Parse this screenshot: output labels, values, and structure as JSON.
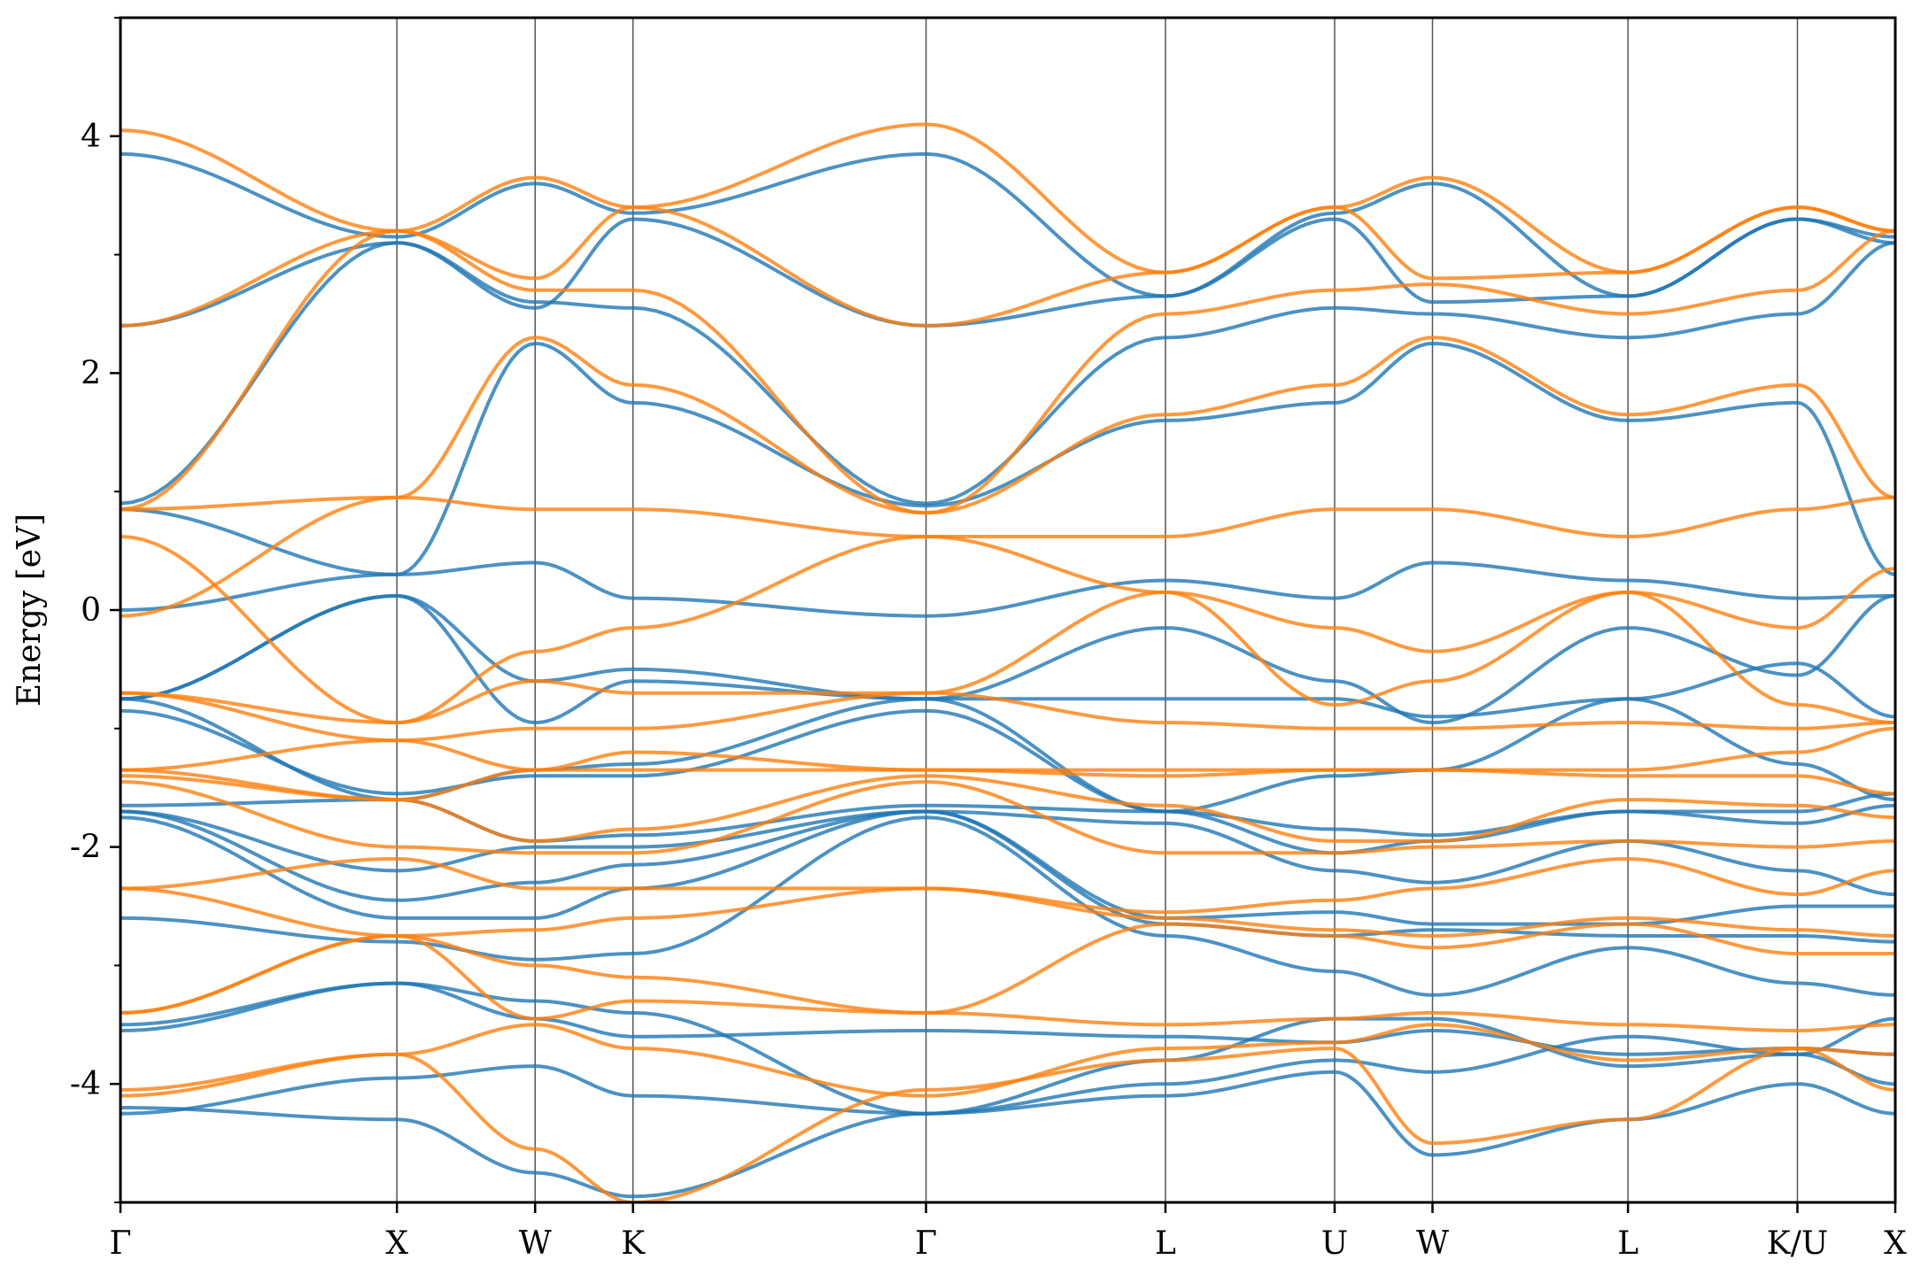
{
  "chart_data": {
    "type": "line",
    "title": "",
    "xlabel": "",
    "ylabel": "Energy [eV]",
    "ylim": [
      -5,
      5
    ],
    "y_ticks": [
      -4,
      -2,
      0,
      2,
      4
    ],
    "y_tick_labels": [
      "-4",
      "-2",
      "0",
      "2",
      "4"
    ],
    "k_path": [
      {
        "label": "Γ",
        "k": 0.0
      },
      {
        "label": "X",
        "k": 1.0
      },
      {
        "label": "W",
        "k": 1.5
      },
      {
        "label": "K",
        "k": 1.854
      },
      {
        "label": "Γ",
        "k": 2.914
      },
      {
        "label": "L",
        "k": 3.78
      },
      {
        "label": "U",
        "k": 4.392
      },
      {
        "label": "W",
        "k": 4.746
      },
      {
        "label": "L",
        "k": 5.453
      },
      {
        "label": "K/U",
        "k": 6.066
      },
      {
        "label": "X",
        "k": 6.42
      }
    ],
    "grid": false,
    "series_colors": [
      "#1f77b4",
      "#ff7f0e"
    ],
    "series": [
      {
        "color": "#1f77b4",
        "bands": [
          [
            -4.25,
            -3.95,
            -3.85,
            -4.1,
            -4.25,
            -4.0,
            -3.8,
            -3.9,
            -3.6,
            -3.75,
            -4.0
          ],
          [
            -4.2,
            -4.3,
            -4.75,
            -4.95,
            -4.25,
            -4.1,
            -3.9,
            -4.6,
            -4.3,
            -4.0,
            -4.25
          ],
          [
            -3.55,
            -3.15,
            -3.45,
            -3.6,
            -3.55,
            -3.6,
            -3.65,
            -3.55,
            -3.75,
            -3.7,
            -3.75
          ],
          [
            -3.5,
            -3.15,
            -3.3,
            -3.4,
            -4.25,
            -3.8,
            -3.45,
            -3.45,
            -3.85,
            -3.75,
            -3.45
          ],
          [
            -2.6,
            -2.8,
            -2.95,
            -2.9,
            -1.75,
            -2.75,
            -3.05,
            -3.25,
            -2.85,
            -3.15,
            -3.25
          ],
          [
            -1.75,
            -2.6,
            -2.6,
            -2.35,
            -1.7,
            -2.65,
            -2.75,
            -2.7,
            -2.75,
            -2.75,
            -2.8
          ],
          [
            -1.7,
            -2.45,
            -2.3,
            -2.15,
            -1.7,
            -2.6,
            -2.55,
            -2.65,
            -2.65,
            -2.5,
            -2.5
          ],
          [
            -1.7,
            -2.2,
            -2.0,
            -2.0,
            -1.7,
            -1.8,
            -2.2,
            -2.3,
            -1.95,
            -2.2,
            -2.4
          ],
          [
            -1.65,
            -1.6,
            -1.95,
            -1.9,
            -1.65,
            -1.7,
            -2.05,
            -1.95,
            -1.7,
            -1.8,
            -1.65
          ],
          [
            -0.85,
            -1.55,
            -1.4,
            -1.4,
            -0.85,
            -1.7,
            -1.85,
            -1.9,
            -1.7,
            -1.7,
            -1.55
          ],
          [
            -0.75,
            -1.6,
            -1.35,
            -1.3,
            -0.75,
            -1.7,
            -1.4,
            -1.35,
            -0.75,
            -1.3,
            -1.6
          ],
          [
            -0.75,
            0.12,
            -0.6,
            -0.5,
            -0.75,
            -0.75,
            -0.75,
            -0.9,
            -0.75,
            -0.45,
            -0.9
          ],
          [
            -0.75,
            0.12,
            -0.95,
            -0.6,
            -0.75,
            -0.15,
            -0.6,
            -0.95,
            -0.15,
            -0.55,
            0.12
          ],
          [
            0.0,
            0.3,
            0.4,
            0.1,
            -0.05,
            0.25,
            0.1,
            0.4,
            0.25,
            0.1,
            0.12
          ],
          [
            0.85,
            0.3,
            2.25,
            1.75,
            0.88,
            1.6,
            1.75,
            2.25,
            1.6,
            1.75,
            0.3
          ],
          [
            0.9,
            3.1,
            2.6,
            2.55,
            0.9,
            2.3,
            2.55,
            2.5,
            2.3,
            2.5,
            3.1
          ],
          [
            2.4,
            3.1,
            2.55,
            3.3,
            2.4,
            2.65,
            3.3,
            2.6,
            2.65,
            3.3,
            3.1
          ],
          [
            3.85,
            3.15,
            3.6,
            3.35,
            3.85,
            2.65,
            3.35,
            3.6,
            2.65,
            3.3,
            3.15
          ]
        ]
      },
      {
        "color": "#ff7f0e",
        "bands": [
          [
            -4.1,
            -3.75,
            -4.55,
            -5.0,
            -4.05,
            -3.8,
            -3.7,
            -4.5,
            -4.3,
            -3.7,
            -4.05
          ],
          [
            -4.05,
            -3.75,
            -3.5,
            -3.7,
            -4.1,
            -3.7,
            -3.65,
            -3.5,
            -3.8,
            -3.7,
            -3.75
          ],
          [
            -3.4,
            -2.75,
            -3.45,
            -3.3,
            -3.4,
            -3.5,
            -3.45,
            -3.4,
            -3.5,
            -3.55,
            -3.5
          ],
          [
            -3.4,
            -2.75,
            -3.0,
            -3.1,
            -3.4,
            -2.65,
            -2.75,
            -2.85,
            -2.65,
            -2.9,
            -2.9
          ],
          [
            -2.35,
            -2.75,
            -2.7,
            -2.6,
            -2.35,
            -2.6,
            -2.7,
            -2.75,
            -2.6,
            -2.7,
            -2.75
          ],
          [
            -2.35,
            -2.1,
            -2.35,
            -2.35,
            -2.35,
            -2.55,
            -2.45,
            -2.35,
            -2.1,
            -2.4,
            -2.2
          ],
          [
            -1.45,
            -2.0,
            -2.05,
            -2.05,
            -1.45,
            -2.05,
            -2.05,
            -2.0,
            -1.95,
            -2.0,
            -1.95
          ],
          [
            -1.4,
            -1.6,
            -1.95,
            -1.85,
            -1.4,
            -1.65,
            -1.95,
            -1.95,
            -1.6,
            -1.65,
            -1.75
          ],
          [
            -1.35,
            -1.6,
            -1.35,
            -1.35,
            -1.35,
            -1.4,
            -1.35,
            -1.35,
            -1.4,
            -1.4,
            -1.55
          ],
          [
            -1.35,
            -1.1,
            -1.35,
            -1.2,
            -1.35,
            -1.35,
            -1.35,
            -1.35,
            -1.35,
            -1.2,
            -1.0
          ],
          [
            -0.7,
            -1.1,
            -1.0,
            -1.0,
            -0.7,
            -0.95,
            -1.0,
            -1.0,
            -0.95,
            -1.0,
            -0.95
          ],
          [
            -0.7,
            -0.95,
            -0.6,
            -0.7,
            -0.7,
            0.15,
            -0.8,
            -0.6,
            0.15,
            -0.8,
            -0.95
          ],
          [
            0.62,
            -0.95,
            -0.35,
            -0.15,
            0.62,
            0.15,
            -0.15,
            -0.35,
            0.15,
            -0.15,
            0.35
          ],
          [
            -0.05,
            0.95,
            0.85,
            0.85,
            0.62,
            0.62,
            0.85,
            0.85,
            0.62,
            0.85,
            0.95
          ],
          [
            0.85,
            0.95,
            2.3,
            1.9,
            0.82,
            1.65,
            1.9,
            2.3,
            1.65,
            1.9,
            0.95
          ],
          [
            0.85,
            3.2,
            2.7,
            2.7,
            0.82,
            2.5,
            2.7,
            2.75,
            2.5,
            2.7,
            3.2
          ],
          [
            2.4,
            3.2,
            2.8,
            3.4,
            2.4,
            2.85,
            3.4,
            2.8,
            2.85,
            3.4,
            3.2
          ],
          [
            4.05,
            3.2,
            3.65,
            3.4,
            4.1,
            2.85,
            3.4,
            3.65,
            2.85,
            3.4,
            3.2
          ]
        ]
      }
    ]
  }
}
